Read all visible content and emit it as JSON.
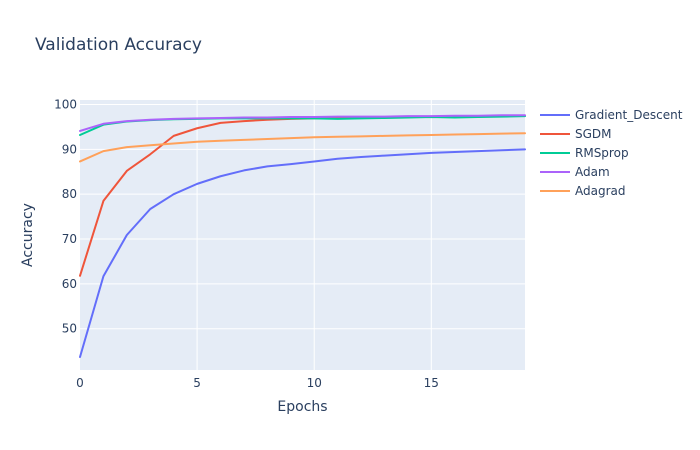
{
  "chart_data": {
    "type": "line",
    "title": "Validation Accuracy",
    "xlabel": "Epochs",
    "ylabel": "Accuracy",
    "xlim": [
      0,
      19
    ],
    "ylim": [
      40.8,
      101
    ],
    "xticks": [
      0,
      5,
      10,
      15
    ],
    "yticks": [
      50,
      60,
      70,
      80,
      90,
      100
    ],
    "grid": true,
    "legend_position": "right",
    "plot_background": "#e5ecf6",
    "x": [
      0,
      1,
      2,
      3,
      4,
      5,
      6,
      7,
      8,
      9,
      10,
      11,
      12,
      13,
      14,
      15,
      16,
      17,
      18,
      19
    ],
    "series": [
      {
        "name": "Gradient_Descent",
        "color": "#636efa",
        "values": [
          43.7,
          61.7,
          70.9,
          76.7,
          80.0,
          82.3,
          84.0,
          85.3,
          86.2,
          86.7,
          87.3,
          87.9,
          88.3,
          88.6,
          88.9,
          89.2,
          89.4,
          89.6,
          89.8,
          90.0
        ]
      },
      {
        "name": "SGDM",
        "color": "#ef553b",
        "values": [
          61.8,
          78.5,
          85.2,
          88.9,
          93.0,
          94.7,
          95.9,
          96.3,
          96.6,
          96.8,
          96.9,
          97.0,
          97.1,
          97.2,
          97.2,
          97.3,
          97.3,
          97.4,
          97.4,
          97.5
        ]
      },
      {
        "name": "RMSprop",
        "color": "#00cc96",
        "values": [
          93.2,
          95.5,
          96.2,
          96.5,
          96.7,
          96.8,
          96.9,
          96.9,
          96.9,
          96.9,
          96.9,
          96.8,
          96.9,
          97.0,
          97.1,
          97.2,
          97.1,
          97.2,
          97.3,
          97.4
        ]
      },
      {
        "name": "Adam",
        "color": "#ab63fa",
        "values": [
          94.1,
          95.7,
          96.3,
          96.6,
          96.8,
          96.9,
          97.0,
          97.1,
          97.1,
          97.2,
          97.2,
          97.3,
          97.3,
          97.3,
          97.4,
          97.4,
          97.5,
          97.5,
          97.6,
          97.6
        ]
      },
      {
        "name": "Adagrad",
        "color": "#ffa15a",
        "values": [
          87.3,
          89.6,
          90.5,
          90.9,
          91.3,
          91.7,
          91.9,
          92.1,
          92.3,
          92.5,
          92.7,
          92.8,
          92.9,
          93.0,
          93.1,
          93.2,
          93.3,
          93.4,
          93.5,
          93.6
        ]
      }
    ]
  }
}
